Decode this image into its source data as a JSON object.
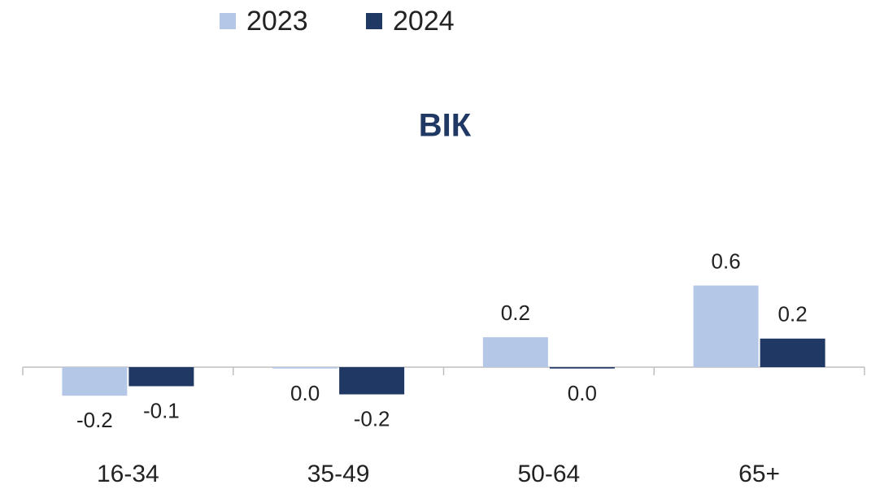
{
  "chart_data": {
    "type": "bar",
    "title": "ВІК",
    "categories": [
      "16-34",
      "35-49",
      "50-64",
      "65+"
    ],
    "series": [
      {
        "name": "2023",
        "color": "#b4c7e7",
        "values": [
          -0.21,
          -0.01,
          0.22,
          0.6
        ],
        "value_labels": [
          "-0.2",
          "0.0",
          "0.2",
          "0.6"
        ]
      },
      {
        "name": "2024",
        "color": "#203864",
        "values": [
          -0.14,
          -0.2,
          -0.01,
          0.21
        ],
        "value_labels": [
          "-0.1",
          "-0.2",
          "0.0",
          "0.2"
        ]
      }
    ],
    "ylim": [
      -0.4,
      0.8
    ],
    "legend": "top"
  }
}
